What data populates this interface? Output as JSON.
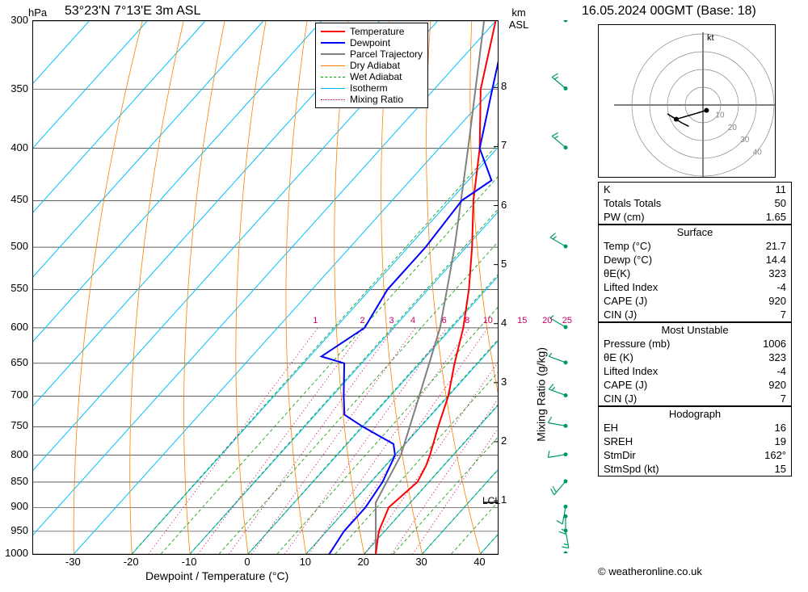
{
  "title": "53°23'N 7°13'E 3m ASL",
  "date": "16.05.2024 00GMT (Base: 18)",
  "axis": {
    "yleft_title": "hPa",
    "yright_title": "km\nASL",
    "x_title": "Dewpoint / Temperature (°C)",
    "right_label": "Mixing Ratio (g/kg)",
    "xticks": [
      -30,
      -20,
      -10,
      0,
      10,
      20,
      30,
      40
    ],
    "yticks_hpa": [
      300,
      350,
      400,
      450,
      500,
      550,
      600,
      650,
      700,
      750,
      800,
      850,
      900,
      950,
      1000
    ],
    "yticks_km": [
      1,
      2,
      3,
      4,
      5,
      6,
      7,
      8
    ]
  },
  "legend": [
    {
      "label": "Temperature",
      "color": "#ff0000",
      "style": "solid",
      "width": 2
    },
    {
      "label": "Dewpoint",
      "color": "#0000ff",
      "style": "solid",
      "width": 2
    },
    {
      "label": "Parcel Trajectory",
      "color": "#808080",
      "style": "solid",
      "width": 2
    },
    {
      "label": "Dry Adiabat",
      "color": "#ff8000",
      "style": "solid",
      "width": 1
    },
    {
      "label": "Wet Adiabat",
      "color": "#009900",
      "style": "dashed",
      "width": 1
    },
    {
      "label": "Isotherm",
      "color": "#00bfff",
      "style": "solid",
      "width": 1
    },
    {
      "label": "Mixing Ratio",
      "color": "#cc0066",
      "style": "dotted",
      "width": 1
    }
  ],
  "mixing_ratio_labels": [
    "1",
    "2",
    "3",
    "4",
    "6",
    "8",
    "10",
    "15",
    "20",
    "25"
  ],
  "lcl_label": "LCL",
  "lcl_p": 890,
  "profiles": {
    "comment": "pressure (hPa) vs temperature (°C)",
    "temperature": [
      [
        1000,
        22
      ],
      [
        950,
        19
      ],
      [
        900,
        17
      ],
      [
        850,
        18
      ],
      [
        820,
        17
      ],
      [
        800,
        16
      ],
      [
        750,
        13
      ],
      [
        700,
        10
      ],
      [
        650,
        6
      ],
      [
        600,
        2
      ],
      [
        550,
        -3
      ],
      [
        500,
        -9
      ],
      [
        450,
        -16
      ],
      [
        400,
        -23
      ],
      [
        350,
        -32
      ],
      [
        300,
        -40
      ]
    ],
    "dewpoint": [
      [
        1000,
        14
      ],
      [
        950,
        13
      ],
      [
        900,
        13
      ],
      [
        850,
        12
      ],
      [
        800,
        10
      ],
      [
        780,
        8
      ],
      [
        750,
        0
      ],
      [
        730,
        -5
      ],
      [
        700,
        -8
      ],
      [
        650,
        -13
      ],
      [
        640,
        -18
      ],
      [
        600,
        -15
      ],
      [
        550,
        -17
      ],
      [
        500,
        -17
      ],
      [
        450,
        -18
      ],
      [
        430,
        -16
      ],
      [
        400,
        -23
      ],
      [
        350,
        -30
      ],
      [
        300,
        -38
      ]
    ],
    "parcel": [
      [
        1000,
        22
      ],
      [
        890,
        14
      ],
      [
        800,
        11
      ],
      [
        700,
        5
      ],
      [
        600,
        -2
      ],
      [
        500,
        -12
      ],
      [
        400,
        -25
      ],
      [
        300,
        -42
      ]
    ]
  },
  "indices": {
    "rows": [
      [
        "K",
        "11"
      ],
      [
        "Totals Totals",
        "50"
      ],
      [
        "PW (cm)",
        "1.65"
      ]
    ]
  },
  "surface": {
    "header": "Surface",
    "rows": [
      [
        "Temp (°C)",
        "21.7"
      ],
      [
        "Dewp (°C)",
        "14.4"
      ],
      [
        "θE(K)",
        "323"
      ],
      [
        "Lifted Index",
        "-4"
      ],
      [
        "CAPE (J)",
        "920"
      ],
      [
        "CIN (J)",
        "7"
      ]
    ]
  },
  "unstable": {
    "header": "Most Unstable",
    "rows": [
      [
        "Pressure (mb)",
        "1006"
      ],
      [
        "θE (K)",
        "323"
      ],
      [
        "Lifted Index",
        "-4"
      ],
      [
        "CAPE (J)",
        "920"
      ],
      [
        "CIN (J)",
        "7"
      ]
    ]
  },
  "hodograph": {
    "header": "Hodograph",
    "rows": [
      [
        "EH",
        "16"
      ],
      [
        "SREH",
        "19"
      ],
      [
        "StmDir",
        "162°"
      ],
      [
        "StmSpd (kt)",
        "15"
      ]
    ]
  },
  "hodograph_chart": {
    "kt_label": "kt",
    "rings": [
      10,
      20,
      30,
      40
    ],
    "points": [
      [
        2,
        -3
      ],
      [
        -15,
        -8
      ],
      [
        -20,
        -5
      ],
      [
        -12,
        -10
      ],
      [
        -8,
        -12
      ]
    ]
  },
  "wind_barbs": [
    {
      "p": 1000,
      "dir": 160,
      "spd": 10
    },
    {
      "p": 950,
      "dir": 170,
      "spd": 15
    },
    {
      "p": 920,
      "dir": 180,
      "spd": 15
    },
    {
      "p": 900,
      "dir": 190,
      "spd": 10
    },
    {
      "p": 850,
      "dir": 220,
      "spd": 20
    },
    {
      "p": 800,
      "dir": 260,
      "spd": 10
    },
    {
      "p": 750,
      "dir": 280,
      "spd": 10
    },
    {
      "p": 700,
      "dir": 290,
      "spd": 15
    },
    {
      "p": 650,
      "dir": 290,
      "spd": 5
    },
    {
      "p": 600,
      "dir": 300,
      "spd": 5
    },
    {
      "p": 500,
      "dir": 300,
      "spd": 15
    },
    {
      "p": 400,
      "dir": 310,
      "spd": 15
    },
    {
      "p": 350,
      "dir": 310,
      "spd": 15
    },
    {
      "p": 300,
      "dir": 310,
      "spd": 20
    }
  ],
  "colors": {
    "temperature": "#ff0000",
    "dewpoint": "#0000ff",
    "parcel": "#808080",
    "dry_adiabat": "#ff8000",
    "wet_adiabat": "#009900",
    "isotherm": "#00bfff",
    "mixing_ratio": "#cc0066",
    "barb": "#009966"
  },
  "copyright": "© weatheronline.co.uk"
}
